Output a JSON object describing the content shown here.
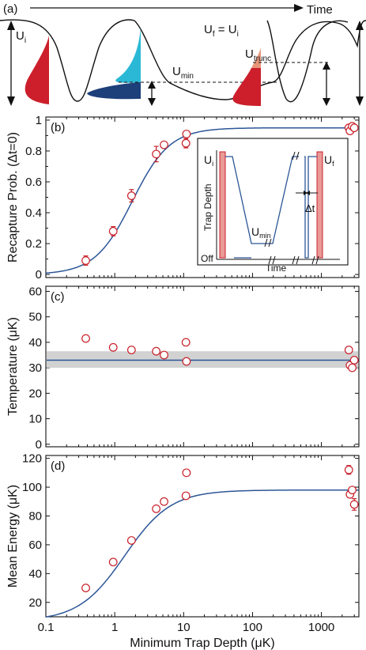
{
  "panel_a": {
    "label": "(a)",
    "time_label": "Time",
    "u_i": "U",
    "u_i_sub": "i",
    "u_min": "U",
    "u_min_sub": "min",
    "u_f_eq": "U",
    "u_f_sub": "f",
    "u_f_eq_rest": " = U",
    "u_f_eq_rest_sub": "i",
    "u_trunc": "U",
    "u_trunc_sub": "trunc"
  },
  "inset": {
    "ylabel": "Trap Depth",
    "xlabel": "Time",
    "u_i": "U",
    "u_i_sub": "i",
    "u_f": "U",
    "u_f_sub": "f",
    "u_min": "U",
    "u_min_sub": "min",
    "off": "Off",
    "delta_t": "Δt"
  },
  "colors": {
    "fit_line": "#2c5697",
    "marker": "#c8202a",
    "band": "#d2d2d2",
    "red_fill": "#cc1f2b",
    "cyan_fill": "#2bb8d6",
    "navy_fill": "#1d3f7a",
    "salmon_fill": "#e8967a",
    "inset_bar": "#e99a96"
  },
  "chart_data": [
    {
      "type": "scatter",
      "label": "(b)",
      "xlabel": "",
      "ylabel": "Recapture Prob. (Δt=0)",
      "x_scale": "log",
      "xlim": [
        0.1,
        3500
      ],
      "ylim": [
        -0.02,
        1.02
      ],
      "yticks": [
        0,
        0.2,
        0.4,
        0.6,
        0.8,
        1
      ],
      "ytick_labels": [
        "0",
        "0.2",
        "0.4",
        "0.6",
        "0.8",
        "1"
      ],
      "points": [
        {
          "x": 0.38,
          "y": 0.09,
          "err": 0.03
        },
        {
          "x": 0.95,
          "y": 0.28,
          "err": 0.03
        },
        {
          "x": 1.75,
          "y": 0.51,
          "err": 0.04
        },
        {
          "x": 4.0,
          "y": 0.78,
          "err": 0.05
        },
        {
          "x": 5.2,
          "y": 0.84,
          "err": 0.0
        },
        {
          "x": 10.8,
          "y": 0.85,
          "err": 0.03
        },
        {
          "x": 11.0,
          "y": 0.91,
          "err": 0.02
        },
        {
          "x": 2500,
          "y": 0.95,
          "err": 0.02
        },
        {
          "x": 2600,
          "y": 0.93,
          "err": 0.02
        },
        {
          "x": 2800,
          "y": 0.96,
          "err": 0.01
        },
        {
          "x": 3000,
          "y": 0.95,
          "err": 0.01
        }
      ],
      "fit": {
        "plateau": 0.95,
        "x_half": 1.8,
        "hill_n": 1.6
      }
    },
    {
      "type": "scatter",
      "label": "(c)",
      "xlabel": "",
      "ylabel": "Temperature (μK)",
      "x_scale": "log",
      "xlim": [
        0.1,
        3500
      ],
      "ylim": [
        -1,
        62
      ],
      "yticks": [
        0,
        10,
        20,
        30,
        40,
        50,
        60
      ],
      "ytick_labels": [
        "0",
        "10",
        "20",
        "30",
        "40",
        "50",
        "60"
      ],
      "points": [
        {
          "x": 0.38,
          "y": 41.5,
          "err": 0
        },
        {
          "x": 0.95,
          "y": 38.0,
          "err": 0
        },
        {
          "x": 1.75,
          "y": 37.0,
          "err": 0
        },
        {
          "x": 4.0,
          "y": 36.5,
          "err": 0
        },
        {
          "x": 5.2,
          "y": 35.0,
          "err": 0
        },
        {
          "x": 10.8,
          "y": 40.0,
          "err": 0
        },
        {
          "x": 11.0,
          "y": 32.5,
          "err": 0
        },
        {
          "x": 2500,
          "y": 37.0,
          "err": 0
        },
        {
          "x": 2600,
          "y": 31.0,
          "err": 0
        },
        {
          "x": 2800,
          "y": 30.0,
          "err": 1.2
        },
        {
          "x": 3000,
          "y": 33.0,
          "err": 0
        }
      ],
      "mean": 33,
      "band": [
        30,
        36.5
      ]
    },
    {
      "type": "scatter",
      "label": "(d)",
      "xlabel": "Minimum Trap Depth (μK)",
      "ylabel": "Mean Energy (μK)",
      "x_scale": "log",
      "xlim": [
        0.1,
        3500
      ],
      "ylim": [
        10,
        122
      ],
      "yticks": [
        20,
        40,
        60,
        80,
        100,
        120
      ],
      "ytick_labels": [
        "20",
        "40",
        "60",
        "80",
        "100",
        "120"
      ],
      "xticks": [
        0.1,
        1,
        10,
        100,
        1000
      ],
      "xtick_labels": [
        "0.1",
        "1",
        "10",
        "100",
        "1000"
      ],
      "points": [
        {
          "x": 0.38,
          "y": 30,
          "err": 0
        },
        {
          "x": 0.95,
          "y": 48,
          "err": 0
        },
        {
          "x": 1.75,
          "y": 63,
          "err": 0
        },
        {
          "x": 4.0,
          "y": 85,
          "err": 0
        },
        {
          "x": 5.2,
          "y": 90,
          "err": 0
        },
        {
          "x": 10.8,
          "y": 94,
          "err": 0
        },
        {
          "x": 11.0,
          "y": 110,
          "err": 2
        },
        {
          "x": 2500,
          "y": 112,
          "err": 3
        },
        {
          "x": 2600,
          "y": 95,
          "err": 2
        },
        {
          "x": 2800,
          "y": 98,
          "err": 2
        },
        {
          "x": 3000,
          "y": 88,
          "err": 4
        }
      ],
      "fit": {
        "base": 7,
        "plateau": 98,
        "x_half": 1.4,
        "hill_n": 1.3
      }
    }
  ]
}
